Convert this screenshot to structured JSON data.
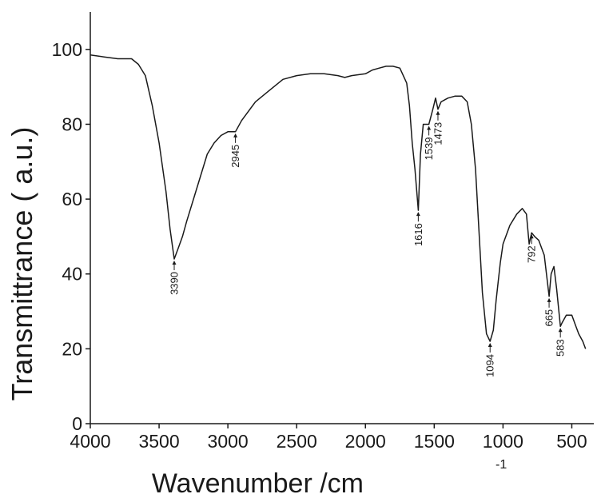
{
  "chart_data": {
    "type": "line",
    "x_label": "Wavenumber /cm",
    "x_label_superscript": "-1",
    "y_label": "Transmittrance  ( a.u.)",
    "xlim": [
      4000,
      340
    ],
    "ylim": [
      0,
      110
    ],
    "xticks": [
      4000,
      3500,
      3000,
      2500,
      2000,
      1500,
      1000,
      500
    ],
    "yticks": [
      0,
      20,
      40,
      60,
      80,
      100
    ],
    "x": [
      4000,
      3900,
      3800,
      3700,
      3650,
      3600,
      3550,
      3500,
      3450,
      3420,
      3390,
      3360,
      3330,
      3300,
      3250,
      3200,
      3150,
      3100,
      3050,
      3000,
      2945,
      2900,
      2800,
      2700,
      2600,
      2500,
      2400,
      2300,
      2200,
      2150,
      2100,
      2000,
      1950,
      1900,
      1850,
      1800,
      1750,
      1700,
      1680,
      1660,
      1640,
      1616,
      1600,
      1580,
      1560,
      1539,
      1510,
      1490,
      1473,
      1450,
      1400,
      1350,
      1300,
      1260,
      1230,
      1200,
      1180,
      1150,
      1120,
      1094,
      1070,
      1050,
      1020,
      1000,
      950,
      900,
      860,
      830,
      810,
      792,
      770,
      740,
      700,
      665,
      650,
      630,
      610,
      583,
      570,
      540,
      500,
      470,
      450,
      420,
      400
    ],
    "series": [
      {
        "color": "#1a1a1a",
        "values": [
          98.5,
          98,
          97.5,
          97.5,
          96,
          93,
          85,
          75,
          62,
          52,
          44,
          47,
          50,
          54,
          60,
          66,
          72,
          75,
          77,
          78,
          78,
          81,
          86,
          89,
          92,
          93,
          93.5,
          93.5,
          93,
          92.5,
          93,
          93.5,
          94.5,
          95,
          95.5,
          95.5,
          95,
          91,
          85,
          75,
          68,
          57,
          72,
          80,
          80,
          80,
          84,
          87,
          84,
          86,
          87,
          87.5,
          87.5,
          86,
          80,
          68,
          55,
          35,
          24,
          22,
          25,
          33,
          43,
          48,
          53,
          56,
          57.5,
          56,
          48,
          51,
          50,
          49,
          45,
          34,
          40,
          42,
          36,
          26,
          27,
          29,
          29,
          26,
          24,
          22,
          20
        ]
      }
    ],
    "annotations": [
      {
        "x": 3390,
        "y": 44
      },
      {
        "x": 2945,
        "y": 78
      },
      {
        "x": 1616,
        "y": 57
      },
      {
        "x": 1539,
        "y": 80
      },
      {
        "x": 1473,
        "y": 84
      },
      {
        "x": 1094,
        "y": 22
      },
      {
        "x": 792,
        "y": 51
      },
      {
        "x": 665,
        "y": 34
      },
      {
        "x": 583,
        "y": 26
      }
    ]
  }
}
